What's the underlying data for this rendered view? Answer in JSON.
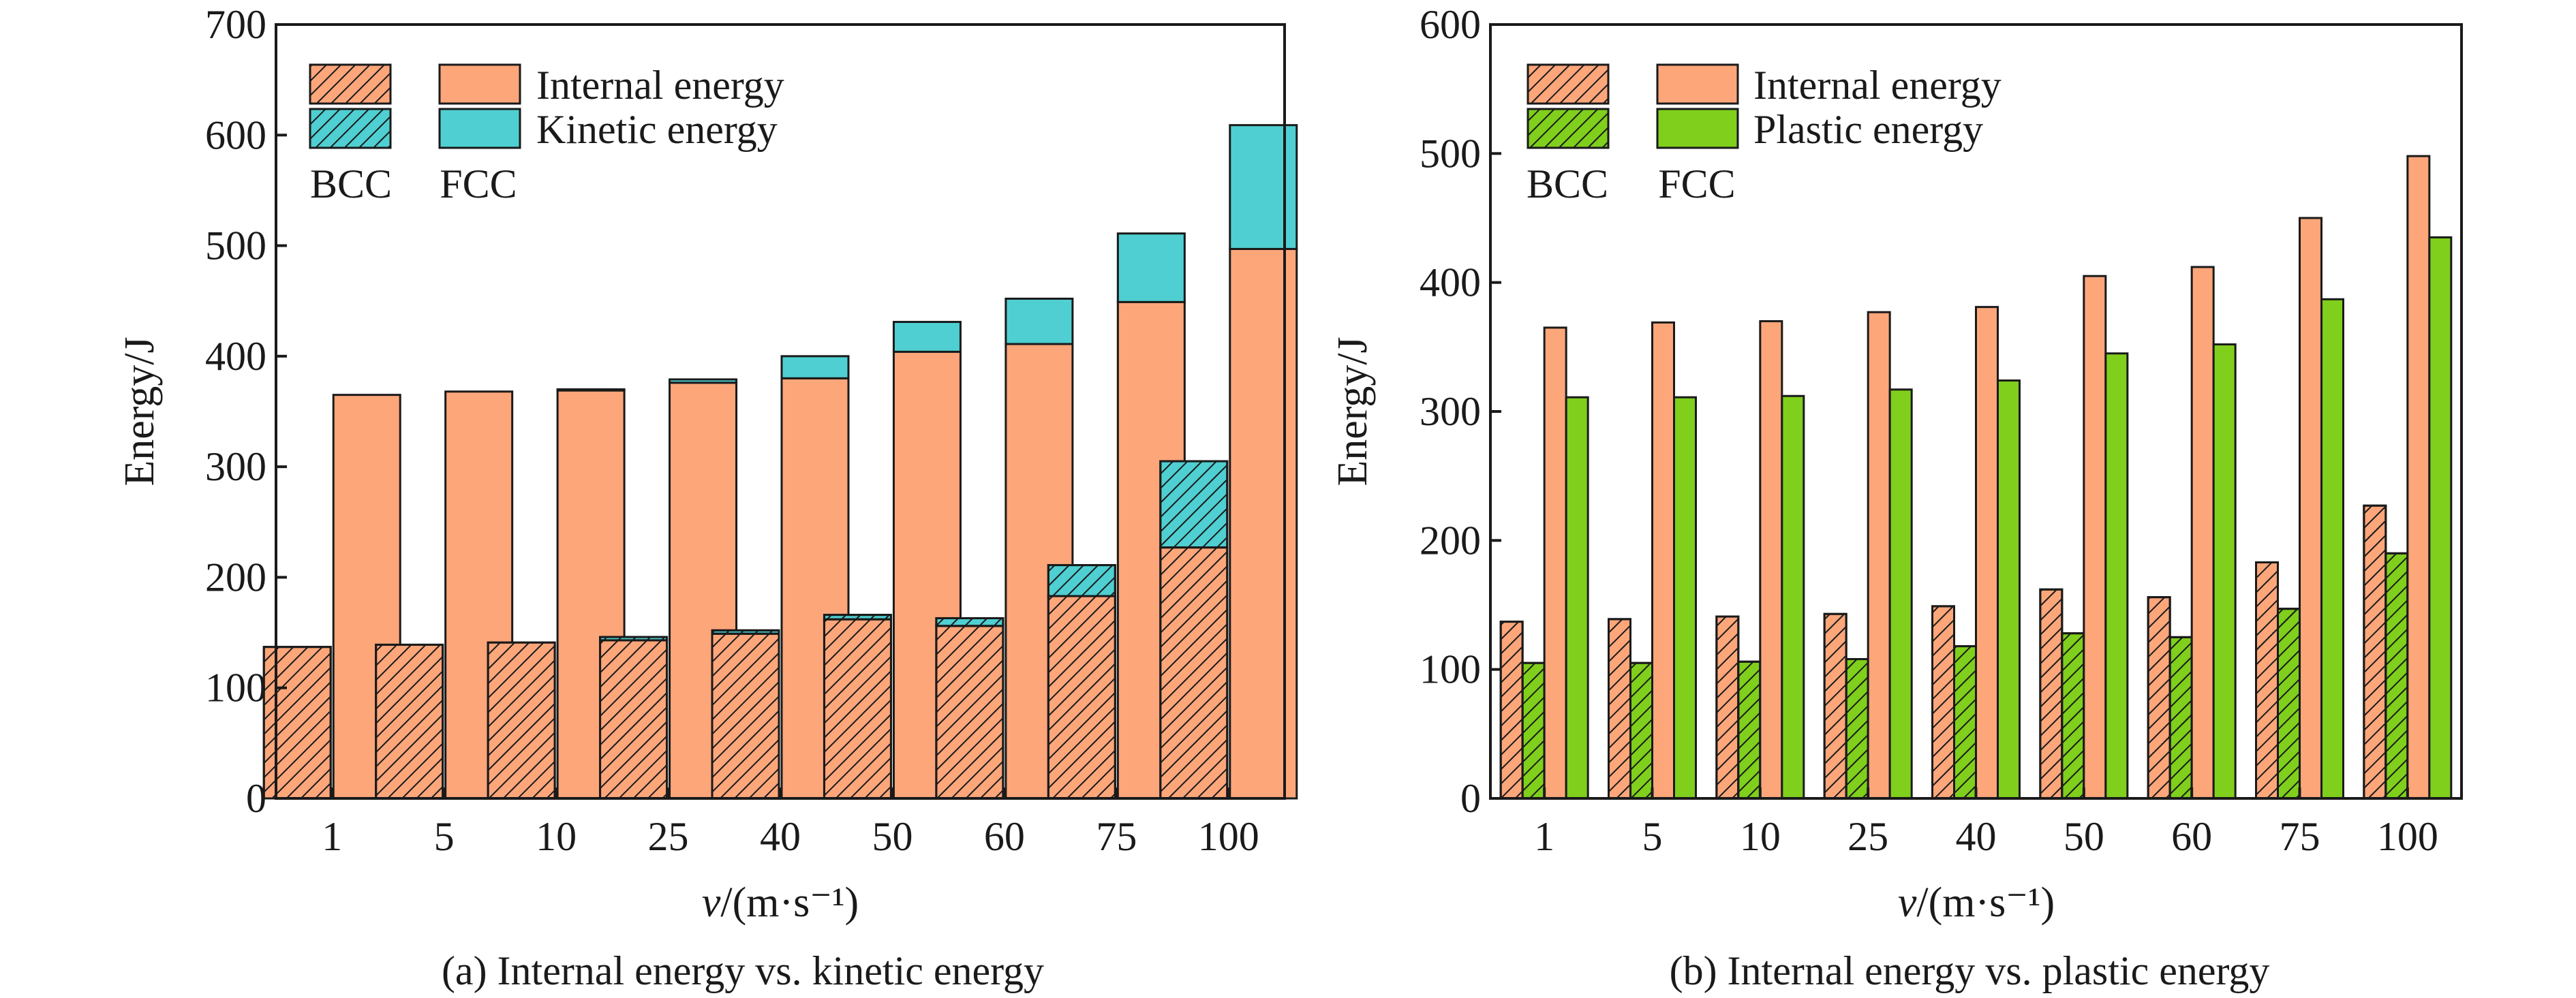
{
  "colors": {
    "internal": "#fca67a",
    "kinetic": "#4fcfd1",
    "plastic": "#7fcf1c",
    "outline": "#1a1a1a"
  },
  "chart_data": [
    {
      "type": "bar",
      "title": "",
      "caption": "(a) Internal energy vs. kinetic energy",
      "xlabel_italic": "v",
      "xlabel_rest": "/(m·s⁻¹)",
      "ylabel": "Energy/J",
      "ylim": [
        0,
        700
      ],
      "yticks": [
        0,
        100,
        200,
        300,
        400,
        500,
        600,
        700
      ],
      "stacked": true,
      "grid": false,
      "legend_position": "top-left",
      "categories": [
        "1",
        "5",
        "10",
        "25",
        "40",
        "50",
        "60",
        "75",
        "100"
      ],
      "legend": {
        "entries": [
          "Internal energy",
          "Kinetic energy"
        ],
        "group_labels": [
          "BCC",
          "FCC"
        ]
      },
      "series": [
        {
          "name": "Internal energy",
          "group": "BCC",
          "hatched": true,
          "color_key": "internal",
          "values": [
            137,
            139,
            141,
            143,
            149,
            162,
            156,
            183,
            227
          ]
        },
        {
          "name": "Kinetic energy",
          "group": "BCC",
          "hatched": true,
          "color_key": "kinetic",
          "values": [
            0,
            0,
            0,
            3,
            3,
            4,
            7,
            28,
            78
          ]
        },
        {
          "name": "Internal energy",
          "group": "FCC",
          "hatched": false,
          "color_key": "internal",
          "values": [
            365,
            368,
            369,
            376,
            380,
            404,
            411,
            449,
            497
          ]
        },
        {
          "name": "Kinetic energy",
          "group": "FCC",
          "hatched": false,
          "color_key": "kinetic",
          "values": [
            0,
            0,
            1,
            3,
            20,
            27,
            41,
            62,
            112
          ]
        }
      ]
    },
    {
      "type": "bar",
      "title": "",
      "caption": "(b) Internal energy vs. plastic energy",
      "xlabel_italic": "v",
      "xlabel_rest": "/(m·s⁻¹)",
      "ylabel": "Energy/J",
      "ylim": [
        0,
        600
      ],
      "yticks": [
        0,
        100,
        200,
        300,
        400,
        500,
        600
      ],
      "stacked": false,
      "grid": false,
      "legend_position": "top-left",
      "categories": [
        "1",
        "5",
        "10",
        "25",
        "40",
        "50",
        "60",
        "75",
        "100"
      ],
      "legend": {
        "entries": [
          "Internal energy",
          "Plastic energy"
        ],
        "group_labels": [
          "BCC",
          "FCC"
        ]
      },
      "series": [
        {
          "name": "Internal energy",
          "group": "BCC",
          "hatched": true,
          "color_key": "internal",
          "values": [
            137,
            139,
            141,
            143,
            149,
            162,
            156,
            183,
            227
          ]
        },
        {
          "name": "Plastic energy",
          "group": "BCC",
          "hatched": true,
          "color_key": "plastic",
          "values": [
            105,
            105,
            106,
            108,
            118,
            128,
            125,
            147,
            190
          ]
        },
        {
          "name": "Internal energy",
          "group": "FCC",
          "hatched": false,
          "color_key": "internal",
          "values": [
            365,
            369,
            370,
            377,
            381,
            405,
            412,
            450,
            498
          ]
        },
        {
          "name": "Plastic energy",
          "group": "FCC",
          "hatched": false,
          "color_key": "plastic",
          "values": [
            311,
            311,
            312,
            317,
            324,
            345,
            352,
            387,
            435
          ]
        }
      ]
    }
  ]
}
